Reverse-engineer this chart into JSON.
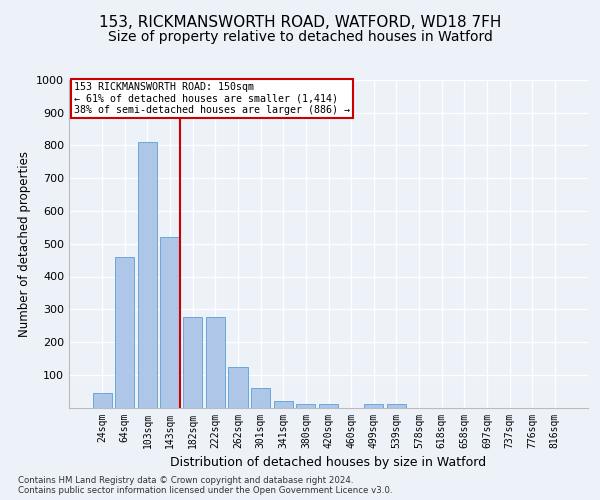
{
  "title1": "153, RICKMANSWORTH ROAD, WATFORD, WD18 7FH",
  "title2": "Size of property relative to detached houses in Watford",
  "xlabel": "Distribution of detached houses by size in Watford",
  "ylabel": "Number of detached properties",
  "footnote": "Contains HM Land Registry data © Crown copyright and database right 2024.\nContains public sector information licensed under the Open Government Licence v3.0.",
  "categories": [
    "24sqm",
    "64sqm",
    "103sqm",
    "143sqm",
    "182sqm",
    "222sqm",
    "262sqm",
    "301sqm",
    "341sqm",
    "380sqm",
    "420sqm",
    "460sqm",
    "499sqm",
    "539sqm",
    "578sqm",
    "618sqm",
    "658sqm",
    "697sqm",
    "737sqm",
    "776sqm",
    "816sqm"
  ],
  "values": [
    45,
    460,
    810,
    520,
    275,
    275,
    125,
    60,
    20,
    12,
    12,
    0,
    12,
    12,
    0,
    0,
    0,
    0,
    0,
    0,
    0
  ],
  "bar_color": "#aec6e8",
  "bar_edge_color": "#5a9fd4",
  "vline_bar_index": 3,
  "annotation_text": "153 RICKMANSWORTH ROAD: 150sqm\n← 61% of detached houses are smaller (1,414)\n38% of semi-detached houses are larger (886) →",
  "annotation_box_color": "#ffffff",
  "annotation_border_color": "#cc0000",
  "vline_color": "#cc0000",
  "ylim": [
    0,
    1000
  ],
  "yticks": [
    0,
    100,
    200,
    300,
    400,
    500,
    600,
    700,
    800,
    900,
    1000
  ],
  "background_color": "#edf1f8",
  "plot_bg_color": "#edf1f8",
  "grid_color": "#ffffff",
  "title1_fontsize": 11,
  "title2_fontsize": 10,
  "xlabel_fontsize": 9,
  "ylabel_fontsize": 8.5
}
